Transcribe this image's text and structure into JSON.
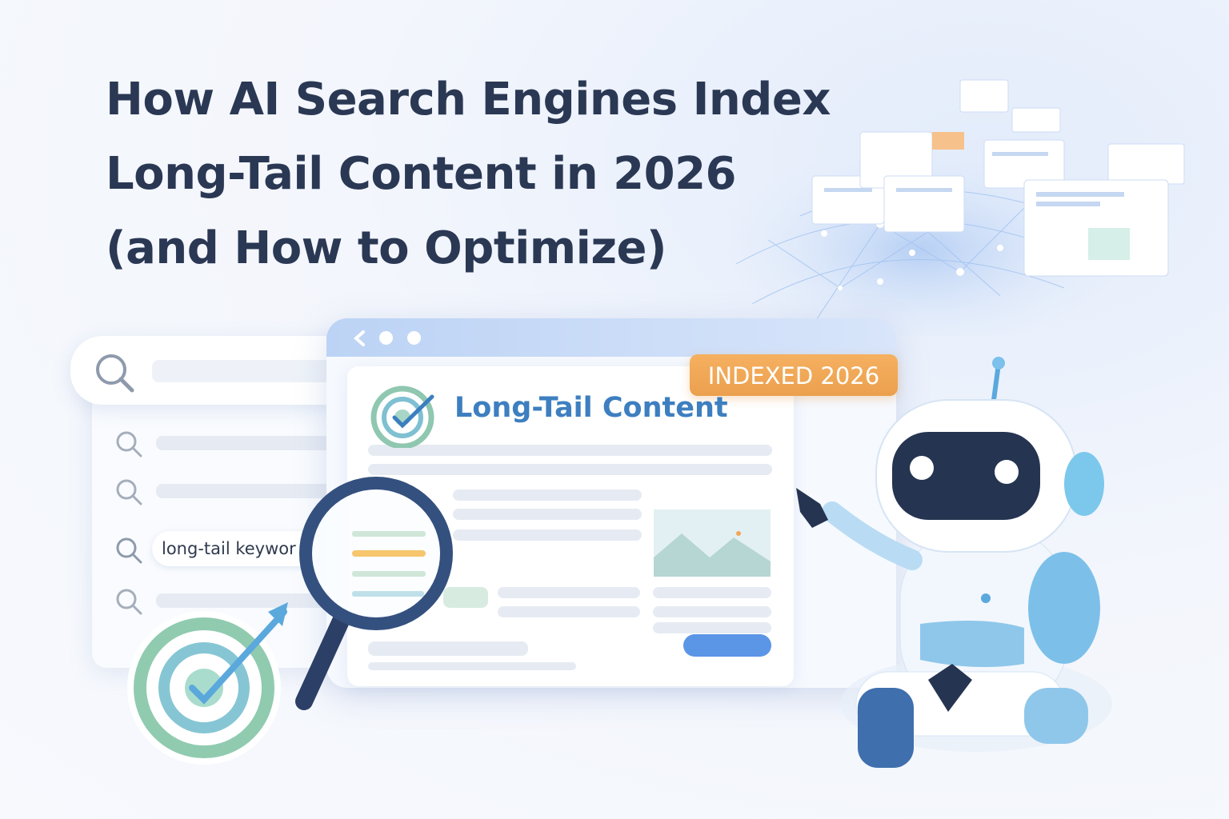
{
  "title": {
    "lines": [
      "How AI Search Engines Index",
      "Long-Tail Content in 2026",
      "(and How to Optimize)"
    ]
  },
  "search": {
    "keyword_value": "long-tail keywor",
    "search_icon": "search-icon"
  },
  "browser": {
    "badge": "INDEXED 2026",
    "doc_title": "Long-Tail Content",
    "nav_icons": [
      "chevron-left-icon",
      "dot-icon",
      "dot-icon"
    ]
  },
  "colors": {
    "title": "#2a3854",
    "accent_blue": "#3d7fc0",
    "badge_orange": "#f0a654",
    "button_blue": "#5b95e6",
    "robot_navy": "#243552"
  }
}
